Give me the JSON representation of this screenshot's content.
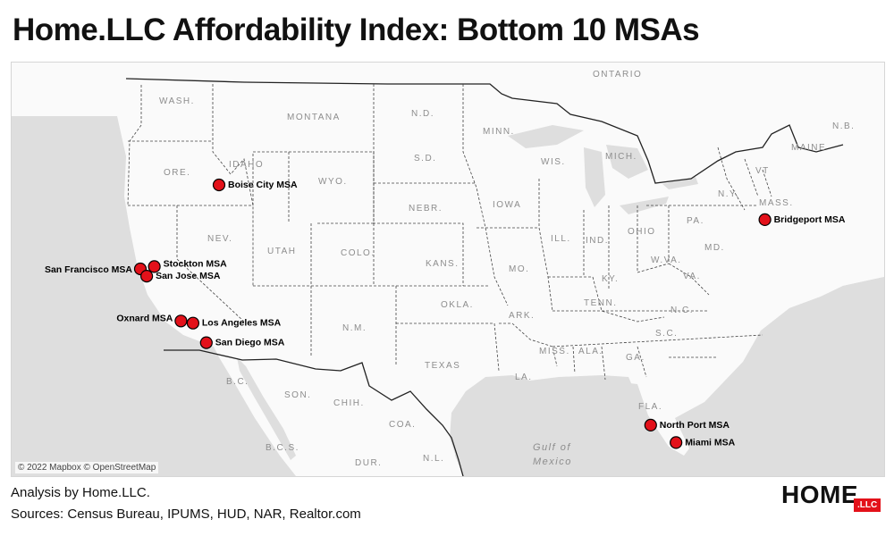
{
  "title": "Home.LLC Affordability Index: Bottom 10 MSAs",
  "map": {
    "attribution": "© 2022 Mapbox © OpenStreetMap",
    "region_labels": [
      "ONTARIO",
      "WASH.",
      "MONTANA",
      "N.D.",
      "MINN.",
      "ORE.",
      "IDAHO",
      "WYO.",
      "S.D.",
      "WIS.",
      "MICH.",
      "MAINE",
      "N.B.",
      "N.Y.",
      "VT",
      "MASS.",
      "IOWA",
      "NEBR.",
      "PA.",
      "NEV.",
      "UTAH",
      "COLO.",
      "KANS.",
      "MO.",
      "ILL.",
      "IND.",
      "OHIO",
      "W.VA.",
      "MD.",
      "VA.",
      "KY.",
      "OKLA.",
      "ARK.",
      "TENN.",
      "N.C.",
      "S.C.",
      "N.M.",
      "MISS.",
      "ALA.",
      "GA.",
      "TEXAS",
      "LA.",
      "FLA.",
      "B.C.",
      "SON.",
      "CHIH.",
      "COA.",
      "B.C.S.",
      "DUR.",
      "N.L."
    ],
    "water_labels": [
      "Gulf of",
      "Mexico"
    ],
    "markers": [
      {
        "name": "Boise City MSA",
        "lat": 43.6,
        "lon": -116.2
      },
      {
        "name": "Bridgeport MSA",
        "lat": 41.2,
        "lon": -73.2
      },
      {
        "name": "San Francisco MSA",
        "lat": 37.8,
        "lon": -122.4
      },
      {
        "name": "Stockton MSA",
        "lat": 37.96,
        "lon": -121.3
      },
      {
        "name": "San Jose MSA",
        "lat": 37.3,
        "lon": -121.9
      },
      {
        "name": "Oxnard MSA",
        "lat": 34.2,
        "lon": -119.2
      },
      {
        "name": "Los Angeles MSA",
        "lat": 34.05,
        "lon": -118.25
      },
      {
        "name": "San Diego MSA",
        "lat": 32.7,
        "lon": -117.2
      },
      {
        "name": "North Port MSA",
        "lat": 27.0,
        "lon": -82.2
      },
      {
        "name": "Miami MSA",
        "lat": 25.8,
        "lon": -80.2
      }
    ]
  },
  "footer": {
    "analysis": "Analysis by Home.LLC.",
    "sources": "Sources: Census Bureau, IPUMS, HUD, NAR, Realtor.com"
  },
  "brand": {
    "main": "HOME",
    "badge": ".LLC",
    "color": "#e3111a"
  }
}
